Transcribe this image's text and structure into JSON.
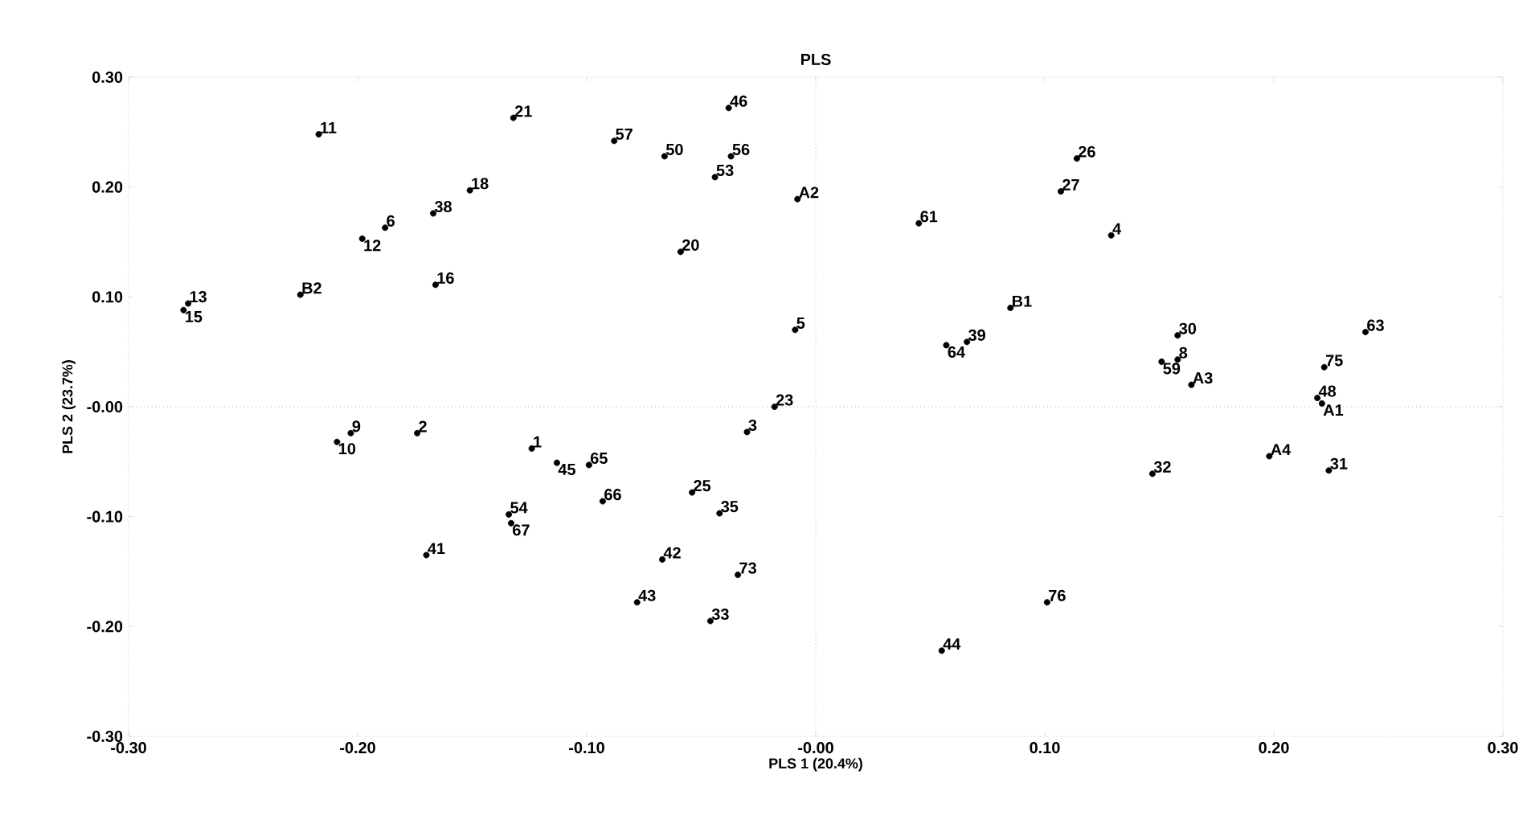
{
  "chart_data": {
    "type": "scatter",
    "title": "PLS",
    "xlabel": "PLS 1 (20.4%)",
    "ylabel": "PLS 2 (23.7%)",
    "color": "#000000",
    "x": [
      -0.217,
      -0.132,
      -0.151,
      -0.167,
      -0.188,
      -0.198,
      -0.166,
      -0.225,
      -0.274,
      -0.276,
      -0.088,
      -0.066,
      -0.038,
      -0.037,
      -0.044,
      -0.008,
      -0.059,
      0.045,
      -0.009,
      0.057,
      0.066,
      0.085,
      -0.018,
      0.114,
      0.107,
      0.129,
      0.158,
      0.158,
      0.151,
      0.164,
      0.222,
      0.24,
      0.219,
      0.221,
      -0.203,
      -0.209,
      -0.174,
      -0.124,
      -0.134,
      -0.133,
      -0.17,
      -0.113,
      -0.099,
      -0.093,
      -0.03,
      -0.054,
      -0.042,
      -0.067,
      -0.034,
      -0.078,
      -0.046,
      0.055,
      0.101,
      0.147,
      0.198,
      0.224
    ],
    "values": [
      0.248,
      0.263,
      0.197,
      0.176,
      0.163,
      0.153,
      0.111,
      0.102,
      0.094,
      0.088,
      0.242,
      0.228,
      0.272,
      0.228,
      0.209,
      0.189,
      0.141,
      0.167,
      0.07,
      0.056,
      0.059,
      0.09,
      0.0,
      0.226,
      0.196,
      0.156,
      0.065,
      0.043,
      0.041,
      0.02,
      0.036,
      0.068,
      0.008,
      0.003,
      -0.024,
      -0.032,
      -0.024,
      -0.038,
      -0.098,
      -0.106,
      -0.135,
      -0.051,
      -0.053,
      -0.086,
      -0.023,
      -0.078,
      -0.097,
      -0.139,
      -0.153,
      -0.178,
      -0.195,
      -0.222,
      -0.178,
      -0.061,
      -0.045,
      -0.058
    ],
    "annotations": [
      {
        "text": "11",
        "x": -0.217,
        "y": 0.248
      },
      {
        "text": "21",
        "x": -0.132,
        "y": 0.263
      },
      {
        "text": "18",
        "x": -0.151,
        "y": 0.197
      },
      {
        "text": "38",
        "x": -0.167,
        "y": 0.176
      },
      {
        "text": "6",
        "x": -0.188,
        "y": 0.163
      },
      {
        "text": "12",
        "x": -0.198,
        "y": 0.153
      },
      {
        "text": "16",
        "x": -0.166,
        "y": 0.111
      },
      {
        "text": "B2",
        "x": -0.225,
        "y": 0.102
      },
      {
        "text": "13",
        "x": -0.274,
        "y": 0.094
      },
      {
        "text": "15",
        "x": -0.276,
        "y": 0.088
      },
      {
        "text": "57",
        "x": -0.088,
        "y": 0.242
      },
      {
        "text": "50",
        "x": -0.066,
        "y": 0.228
      },
      {
        "text": "46",
        "x": -0.038,
        "y": 0.272
      },
      {
        "text": "56",
        "x": -0.037,
        "y": 0.228
      },
      {
        "text": "53",
        "x": -0.044,
        "y": 0.209
      },
      {
        "text": "A2",
        "x": -0.008,
        "y": 0.189
      },
      {
        "text": "20",
        "x": -0.059,
        "y": 0.141
      },
      {
        "text": "61",
        "x": 0.045,
        "y": 0.167
      },
      {
        "text": "5",
        "x": -0.009,
        "y": 0.07
      },
      {
        "text": "64",
        "x": 0.057,
        "y": 0.056
      },
      {
        "text": "39",
        "x": 0.066,
        "y": 0.059
      },
      {
        "text": "B1",
        "x": 0.085,
        "y": 0.09
      },
      {
        "text": "23",
        "x": -0.018,
        "y": 0.0
      },
      {
        "text": "26",
        "x": 0.114,
        "y": 0.226
      },
      {
        "text": "27",
        "x": 0.107,
        "y": 0.196
      },
      {
        "text": "4",
        "x": 0.129,
        "y": 0.156
      },
      {
        "text": "30",
        "x": 0.158,
        "y": 0.065
      },
      {
        "text": "8",
        "x": 0.158,
        "y": 0.043
      },
      {
        "text": "59",
        "x": 0.151,
        "y": 0.041
      },
      {
        "text": "A3",
        "x": 0.164,
        "y": 0.02
      },
      {
        "text": "75",
        "x": 0.222,
        "y": 0.036
      },
      {
        "text": "63",
        "x": 0.24,
        "y": 0.068
      },
      {
        "text": "48",
        "x": 0.219,
        "y": 0.008
      },
      {
        "text": "A1",
        "x": 0.221,
        "y": 0.003
      },
      {
        "text": "9",
        "x": -0.203,
        "y": -0.024
      },
      {
        "text": "10",
        "x": -0.209,
        "y": -0.032
      },
      {
        "text": "2",
        "x": -0.174,
        "y": -0.024
      },
      {
        "text": "1",
        "x": -0.124,
        "y": -0.038
      },
      {
        "text": "54",
        "x": -0.134,
        "y": -0.098
      },
      {
        "text": "67",
        "x": -0.133,
        "y": -0.106
      },
      {
        "text": "41",
        "x": -0.17,
        "y": -0.135
      },
      {
        "text": "45",
        "x": -0.113,
        "y": -0.051
      },
      {
        "text": "65",
        "x": -0.099,
        "y": -0.053
      },
      {
        "text": "66",
        "x": -0.093,
        "y": -0.086
      },
      {
        "text": "3",
        "x": -0.03,
        "y": -0.023
      },
      {
        "text": "25",
        "x": -0.054,
        "y": -0.078
      },
      {
        "text": "35",
        "x": -0.042,
        "y": -0.097
      },
      {
        "text": "42",
        "x": -0.067,
        "y": -0.139
      },
      {
        "text": "73",
        "x": -0.034,
        "y": -0.153
      },
      {
        "text": "43",
        "x": -0.078,
        "y": -0.178
      },
      {
        "text": "33",
        "x": -0.046,
        "y": -0.195
      },
      {
        "text": "44",
        "x": 0.055,
        "y": -0.222
      },
      {
        "text": "76",
        "x": 0.101,
        "y": -0.178
      },
      {
        "text": "32",
        "x": 0.147,
        "y": -0.061
      },
      {
        "text": "A4",
        "x": 0.198,
        "y": -0.045
      },
      {
        "text": "31",
        "x": 0.224,
        "y": -0.058
      }
    ],
    "xlim": [
      -0.3,
      0.3
    ],
    "ylim": [
      -0.3,
      0.3
    ],
    "xticks": [
      {
        "value": -0.3,
        "label": "-0.30"
      },
      {
        "value": -0.2,
        "label": "-0.20"
      },
      {
        "value": -0.1,
        "label": "-0.10"
      },
      {
        "value": 0,
        "label": "-0.00"
      },
      {
        "value": 0.1,
        "label": "0.10"
      },
      {
        "value": 0.2,
        "label": "0.20"
      },
      {
        "value": 0.3,
        "label": "0.30"
      }
    ],
    "yticks": [
      {
        "value": -0.3,
        "label": "-0.30"
      },
      {
        "value": -0.2,
        "label": "-0.20"
      },
      {
        "value": -0.1,
        "label": "-0.10"
      },
      {
        "value": 0,
        "label": "-0.00"
      },
      {
        "value": 0.1,
        "label": "0.10"
      },
      {
        "value": 0.2,
        "label": "0.20"
      },
      {
        "value": 0.3,
        "label": "0.30"
      }
    ],
    "ref_lines": [
      {
        "axis": "x",
        "value": 0,
        "line_style": "dotted",
        "color": "#999999"
      },
      {
        "axis": "y",
        "value": 0,
        "line_style": "dotted",
        "color": "#777777"
      }
    ]
  }
}
